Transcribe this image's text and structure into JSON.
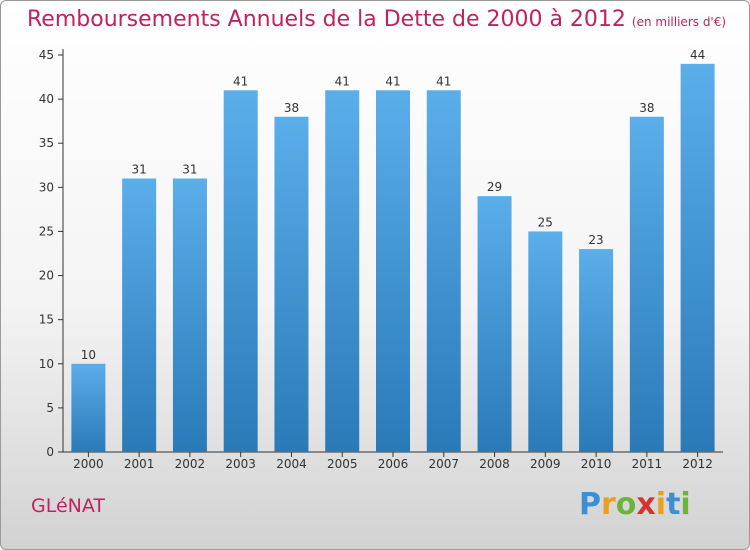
{
  "header": {
    "title": "Remboursements Annuels de la Dette de 2000 à 2012",
    "subtitle": "(en milliers d'€)"
  },
  "footer": {
    "commune": "GLéNAT",
    "logo_text": "Proxiti"
  },
  "colors": {
    "title": "#c0225f",
    "bar_top": "#5aaeea",
    "bar_bottom": "#2a7ab8"
  },
  "chart_data": {
    "type": "bar",
    "title": "Remboursements Annuels de la Dette de 2000 à 2012",
    "subtitle": "(en milliers d'€)",
    "categories": [
      "2000",
      "2001",
      "2002",
      "2003",
      "2004",
      "2005",
      "2006",
      "2007",
      "2008",
      "2009",
      "2010",
      "2011",
      "2012"
    ],
    "values": [
      10,
      31,
      31,
      41,
      38,
      41,
      41,
      41,
      29,
      25,
      23,
      38,
      44
    ],
    "ylim": [
      0,
      45
    ],
    "yticks": [
      0,
      5,
      10,
      15,
      20,
      25,
      30,
      35,
      40,
      45
    ],
    "grid": false,
    "data_labels": true
  }
}
